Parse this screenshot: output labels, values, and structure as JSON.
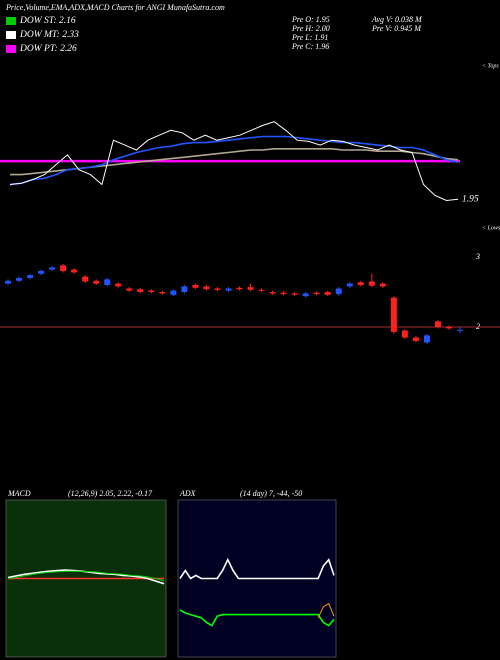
{
  "header": {
    "title": "Price,Volume,EMA,ADX,MACD Charts for ANGI MunafaSutra.com",
    "legend": [
      {
        "name": "DOW ST: 2.16",
        "color": "#00cc00"
      },
      {
        "name": "DOW MT: 2.33",
        "color": "#ffffff"
      },
      {
        "name": "DOW PT: 2.26",
        "color": "#ff00ff"
      }
    ],
    "stats_left": [
      "Pre  O: 1.95",
      "Pre  H: 2.00",
      "Pre  L: 1.91",
      "Pre  C: 1.96"
    ],
    "stats_right": [
      "Avg V: 0.038 M",
      "Pre  V: 0.945 M"
    ]
  },
  "chart_data": [
    {
      "type": "line",
      "ylim": [
        1.7,
        3.0
      ],
      "top_label": "< Tops",
      "bottom_label": "< Lows",
      "last_price": 1.95,
      "hline": {
        "value": 2.26,
        "color": "#ff00ff"
      },
      "series": [
        {
          "color": "#b0a890",
          "values": [
            2.15,
            2.15,
            2.16,
            2.17,
            2.18,
            2.19,
            2.2,
            2.21,
            2.22,
            2.23,
            2.24,
            2.25,
            2.26,
            2.27,
            2.28,
            2.29,
            2.3,
            2.31,
            2.32,
            2.33,
            2.34,
            2.35,
            2.35,
            2.36,
            2.36,
            2.36,
            2.36,
            2.36,
            2.36,
            2.35,
            2.35,
            2.35,
            2.34,
            2.34,
            2.34,
            2.33,
            2.32,
            2.3,
            2.28,
            2.27
          ]
        },
        {
          "color": "#2255ff",
          "values": [
            2.07,
            2.08,
            2.11,
            2.12,
            2.15,
            2.19,
            2.2,
            2.21,
            2.23,
            2.27,
            2.3,
            2.33,
            2.35,
            2.37,
            2.38,
            2.4,
            2.41,
            2.41,
            2.42,
            2.43,
            2.44,
            2.45,
            2.46,
            2.46,
            2.46,
            2.45,
            2.44,
            2.43,
            2.42,
            2.41,
            2.41,
            2.4,
            2.39,
            2.38,
            2.37,
            2.37,
            2.35,
            2.31,
            2.27,
            2.25
          ]
        },
        {
          "color": "#ffffff",
          "values": [
            2.07,
            2.08,
            2.11,
            2.15,
            2.23,
            2.31,
            2.19,
            2.15,
            2.07,
            2.43,
            2.39,
            2.35,
            2.43,
            2.47,
            2.51,
            2.49,
            2.43,
            2.47,
            2.43,
            2.45,
            2.47,
            2.51,
            2.55,
            2.58,
            2.51,
            2.43,
            2.42,
            2.39,
            2.43,
            2.42,
            2.39,
            2.37,
            2.35,
            2.39,
            2.35,
            2.33,
            2.07,
            1.98,
            1.94,
            1.95
          ]
        }
      ]
    },
    {
      "type": "candlestick",
      "ylim": [
        1.5,
        3.5
      ],
      "yticks": [
        2,
        3
      ],
      "reference_line": 2,
      "up_color": "#2255ff",
      "down_color": "#ff2020",
      "ref_color": "#a03030",
      "open": [
        2.62,
        2.66,
        2.7,
        2.76,
        2.82,
        2.88,
        2.82,
        2.72,
        2.66,
        2.6,
        2.62,
        2.55,
        2.54,
        2.52,
        2.5,
        2.46,
        2.5,
        2.6,
        2.58,
        2.55,
        2.52,
        2.56,
        2.57,
        2.53,
        2.5,
        2.49,
        2.48,
        2.44,
        2.49,
        2.5,
        2.47,
        2.58,
        2.64,
        2.65,
        2.62,
        2.42,
        1.95,
        1.85,
        1.78,
        2.08,
        2.0,
        1.95
      ],
      "high": [
        2.68,
        2.72,
        2.76,
        2.82,
        2.87,
        2.9,
        2.84,
        2.74,
        2.68,
        2.7,
        2.64,
        2.57,
        2.56,
        2.54,
        2.52,
        2.54,
        2.6,
        2.62,
        2.6,
        2.57,
        2.57,
        2.58,
        2.62,
        2.55,
        2.52,
        2.51,
        2.5,
        2.5,
        2.51,
        2.52,
        2.57,
        2.64,
        2.66,
        2.76,
        2.64,
        2.44,
        1.97,
        1.87,
        1.9,
        2.1,
        2.02,
        2.0
      ],
      "low": [
        2.6,
        2.64,
        2.68,
        2.74,
        2.8,
        2.78,
        2.76,
        2.63,
        2.6,
        2.58,
        2.56,
        2.5,
        2.48,
        2.48,
        2.46,
        2.44,
        2.48,
        2.54,
        2.52,
        2.51,
        2.5,
        2.52,
        2.51,
        2.5,
        2.46,
        2.45,
        2.44,
        2.42,
        2.45,
        2.44,
        2.45,
        2.56,
        2.58,
        2.57,
        2.56,
        1.9,
        1.83,
        1.78,
        1.76,
        1.98,
        1.96,
        1.91
      ],
      "close": [
        2.66,
        2.7,
        2.74,
        2.8,
        2.85,
        2.8,
        2.78,
        2.65,
        2.62,
        2.68,
        2.58,
        2.52,
        2.5,
        2.5,
        2.48,
        2.52,
        2.58,
        2.56,
        2.54,
        2.53,
        2.55,
        2.54,
        2.53,
        2.52,
        2.48,
        2.47,
        2.46,
        2.48,
        2.47,
        2.46,
        2.55,
        2.62,
        2.6,
        2.59,
        2.58,
        1.93,
        1.85,
        1.8,
        1.88,
        2.0,
        1.98,
        1.96
      ]
    },
    {
      "type": "line",
      "title": "MACD",
      "subtitle": "(12,26,9) 2.05, 2.22, -0.17",
      "background": "#0a300a",
      "ylim": [
        -1.5,
        1.5
      ],
      "series": [
        {
          "color": "#ff3030",
          "values": [
            0,
            0,
            0,
            0,
            0,
            0,
            0,
            0,
            0,
            0,
            0,
            0,
            0,
            0,
            0,
            0,
            0,
            0,
            0,
            0
          ]
        },
        {
          "color": "#ffffff",
          "values": [
            0.02,
            0.05,
            0.08,
            0.1,
            0.12,
            0.14,
            0.15,
            0.16,
            0.15,
            0.14,
            0.12,
            0.1,
            0.09,
            0.08,
            0.06,
            0.05,
            0.03,
            0,
            -0.05,
            -0.1
          ]
        },
        {
          "color": "#00cc00",
          "values": [
            0.0,
            0.02,
            0.05,
            0.08,
            0.1,
            0.12,
            0.13,
            0.14,
            0.14,
            0.14,
            0.13,
            0.12,
            0.1,
            0.09,
            0.08,
            0.06,
            0.05,
            0.03,
            0.0,
            -0.04
          ]
        }
      ]
    },
    {
      "type": "line",
      "title": "ADX",
      "subtitle": "(14 day) 7, -44, -50",
      "background": "#000022",
      "ylim": [
        0,
        100
      ],
      "series": [
        {
          "color": "#ffffff",
          "values": [
            50,
            55,
            50,
            52,
            50,
            50,
            50,
            50,
            55,
            62,
            55,
            50,
            50,
            50,
            50,
            50,
            50,
            50,
            50,
            50,
            50,
            50,
            50,
            50,
            50,
            50,
            50,
            58,
            62,
            52
          ]
        },
        {
          "color": "#00ff00",
          "values": [
            30,
            28,
            27,
            26,
            25,
            22,
            20,
            26,
            27,
            27,
            27,
            27,
            27,
            27,
            27,
            27,
            27,
            27,
            27,
            27,
            27,
            27,
            27,
            27,
            27,
            27,
            27,
            22,
            20,
            24
          ]
        },
        {
          "color": "#ff9900",
          "values": [
            null,
            null,
            null,
            null,
            null,
            null,
            null,
            null,
            null,
            null,
            null,
            null,
            null,
            null,
            null,
            null,
            null,
            null,
            null,
            null,
            null,
            null,
            null,
            null,
            null,
            null,
            25,
            32,
            34,
            26
          ]
        }
      ]
    }
  ]
}
